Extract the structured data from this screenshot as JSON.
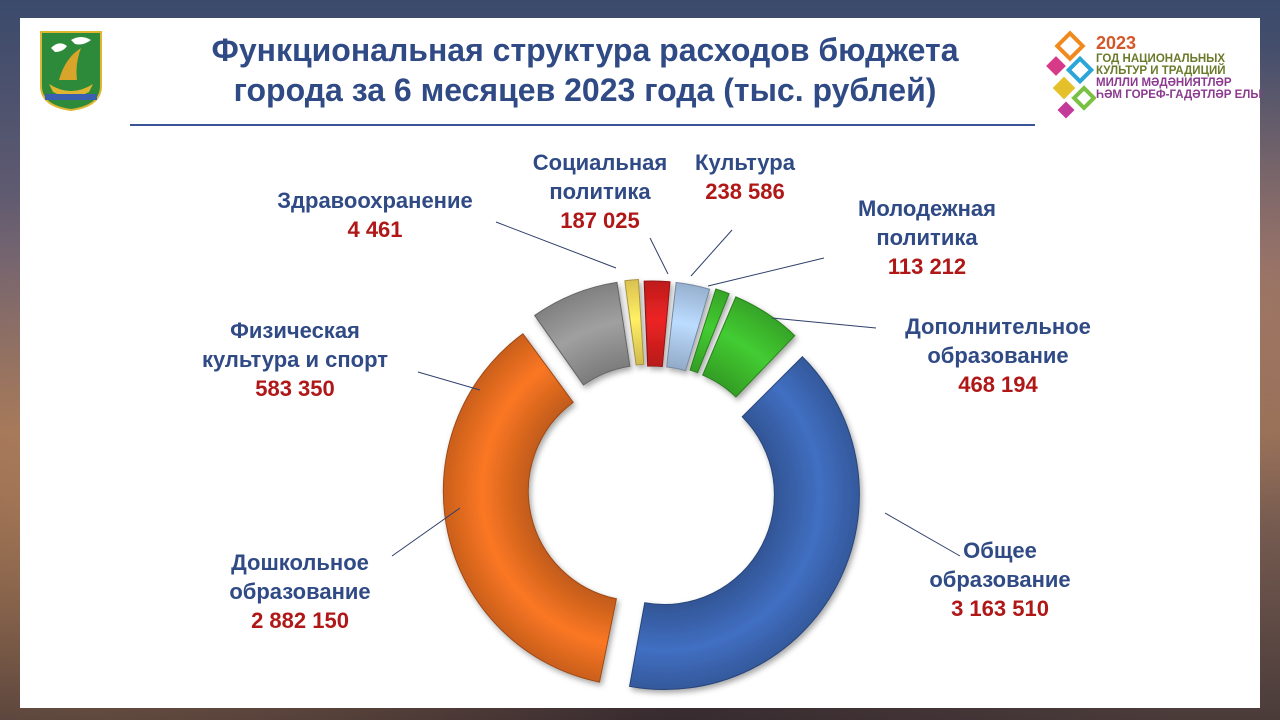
{
  "title_lines": [
    "Функциональная структура расходов бюджета",
    "города за 6 месяцев 2023 года (тыс. рублей)"
  ],
  "right_logo": {
    "year": "2023",
    "lines": [
      {
        "text": "ГОД НАЦИОНАЛЬНЫХ",
        "color": "#6a7a2a"
      },
      {
        "text": "КУЛЬТУР И ТРАДИЦИЙ",
        "color": "#6a7a2a"
      },
      {
        "text": "МИЛЛИ МӘДӘНИЯТЛӘР",
        "color": "#8b3a8f"
      },
      {
        "text": "ҺӘМ ГОРЕФ-ГАДӘТЛӘР ЕЛЫ",
        "color": "#8b3a8f"
      }
    ]
  },
  "colors": {
    "title": "#2f4a84",
    "value": "#b01818",
    "background": "#ffffff"
  },
  "chart_data": {
    "type": "donut",
    "unit": "тыс. рублей",
    "series": [
      {
        "name": "Общее образование",
        "label_lines": [
          "Общее",
          "образование"
        ],
        "value_label": "3 163 510",
        "value": 3163510,
        "color": "#3a63ad"
      },
      {
        "name": "Дошкольное образование",
        "label_lines": [
          "Дошкольное",
          "образование"
        ],
        "value_label": "2 882 150",
        "value": 2882150,
        "color": "#e06a1f"
      },
      {
        "name": "Физическая культура и спорт",
        "label_lines": [
          "Физическая",
          "культура и спорт"
        ],
        "value_label": "583 350",
        "value": 583350,
        "color": "#8f8f8f"
      },
      {
        "name": "Здравоохранение",
        "label_lines": [
          "Здравоохранение"
        ],
        "value_label": "4 461",
        "value": 4461,
        "color": "#f2d65a"
      },
      {
        "name": "Социальная политика",
        "label_lines": [
          "Социальная",
          "политика"
        ],
        "value_label": "187 025",
        "value": 187025,
        "color": "#d41f1f"
      },
      {
        "name": "Культура",
        "label_lines": [
          "Культура"
        ],
        "value_label": "238 586",
        "value": 238586,
        "color": "#a8c4e6"
      },
      {
        "name": "Молодежная политика",
        "label_lines": [
          "Молодежная",
          "политика"
        ],
        "value_label": "113 212",
        "value": 113212,
        "color": "#3cb62c"
      },
      {
        "name": "Дополнительное образование",
        "label_lines": [
          "Дополнительное",
          "образование"
        ],
        "value_label": "468 194",
        "value": 468194,
        "color": "#3cb62c"
      }
    ]
  }
}
